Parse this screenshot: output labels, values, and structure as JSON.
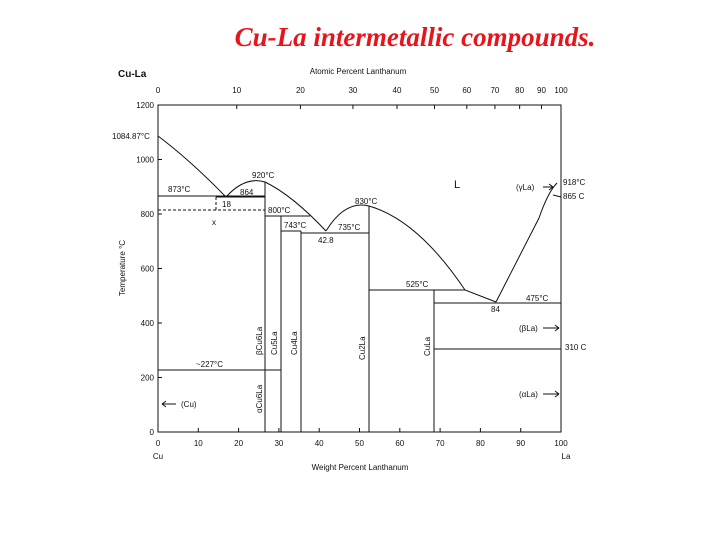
{
  "title": "Cu-La intermetallic compounds.",
  "chart_data": {
    "type": "phase-diagram",
    "system": "Cu-La",
    "x_bottom": {
      "label": "Weight Percent Lanthanum",
      "ticks": [
        "0",
        "10",
        "20",
        "30",
        "40",
        "50",
        "60",
        "70",
        "80",
        "90",
        "100"
      ],
      "range": [
        0,
        100
      ],
      "left_element": "Cu",
      "right_element": "La"
    },
    "x_top": {
      "label": "Atomic Percent Lanthanum",
      "ticks": [
        "0",
        "10",
        "20",
        "30",
        "40",
        "50",
        "60",
        "70",
        "80",
        "90",
        "100"
      ]
    },
    "y": {
      "label": "Temperature °C",
      "ticks": [
        "0",
        "200",
        "400",
        "600",
        "800",
        "1000",
        "1200"
      ],
      "range": [
        0,
        1200
      ]
    },
    "temperature_labels": {
      "cu_melt": "1084.87°C",
      "eut1": "873°C",
      "t864": "864",
      "t920": "920°C",
      "t800": "800°C",
      "t743": "743°C",
      "t735": "735°C",
      "t830": "830°C",
      "t525": "525°C",
      "t475": "475°C",
      "t918": "918°C",
      "t865": "865 C",
      "t310": "310 C",
      "t227": "~227°C"
    },
    "composition_labels": {
      "c18": "18",
      "c42": "42.8",
      "c84": "84",
      "x_mark": "x"
    },
    "phase_labels": {
      "liquid": "L",
      "gamma_la": "(γLa)",
      "beta_la": "(βLa)",
      "alpha_la": "(αLa)",
      "cu": "(Cu)",
      "beta_cu6la": "βCu6La",
      "alpha_cu6la": "αCu6La",
      "cu5la": "Cu5La",
      "cu4la": "Cu4La",
      "cu2la": "Cu2La",
      "cula": "CuLa"
    }
  }
}
